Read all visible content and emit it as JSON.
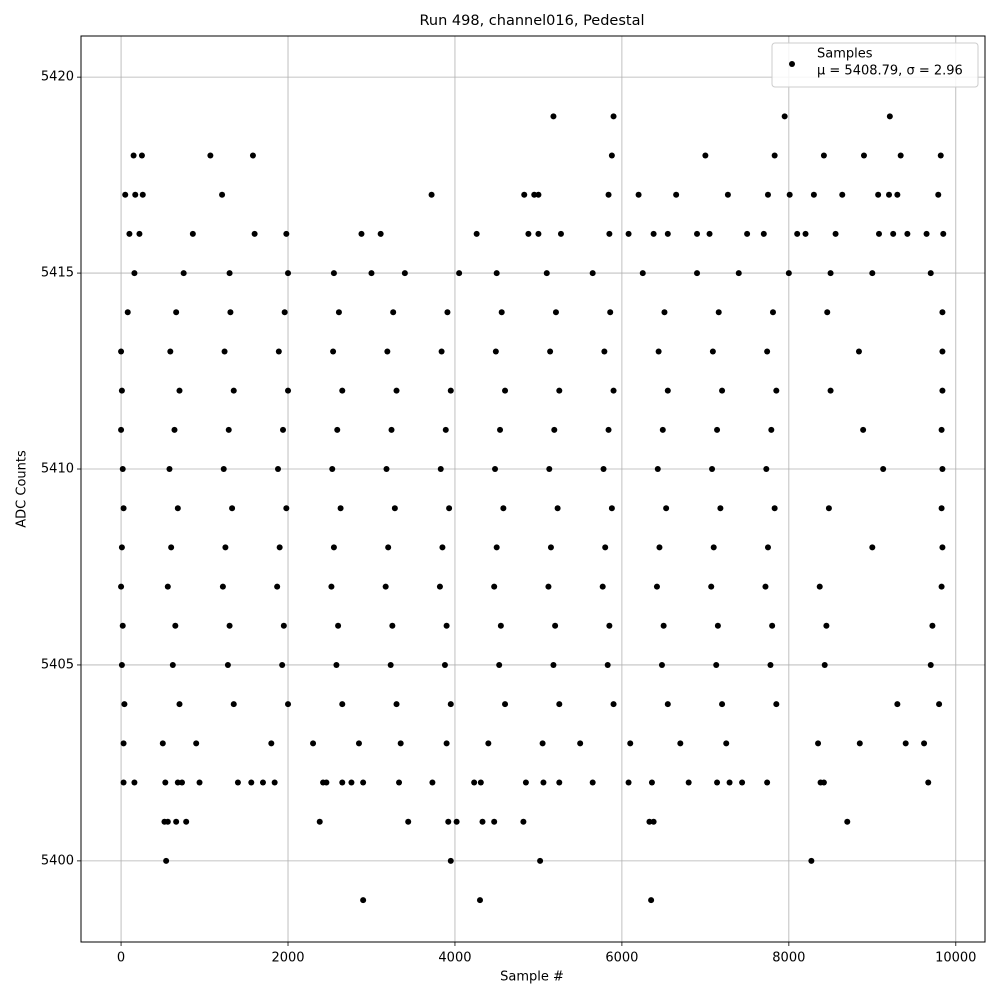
{
  "chart_data": {
    "type": "scatter",
    "title": "Run 498, channel016, Pedestal",
    "x_label": "Sample #",
    "y_label": "ADC Counts",
    "xlim": [
      -480,
      10350
    ],
    "ylim": [
      5397.93,
      5421.05
    ],
    "xticks": [
      0,
      2000,
      4000,
      6000,
      8000,
      10000
    ],
    "yticks": [
      5400,
      5405,
      5410,
      5415,
      5420
    ],
    "grid": true,
    "legend": "upper right",
    "stats_label": "μ = 5408.79, σ = 2.96",
    "x": [
      2900,
      4300,
      6350,
      540,
      3950,
      5020,
      8270,
      520,
      560,
      660,
      780,
      2380,
      3440,
      3920,
      4020,
      4330,
      4470,
      4820,
      6330,
      6380,
      8700,
      30,
      160,
      530,
      680,
      730,
      940,
      1400,
      1560,
      1700,
      1840,
      2420,
      2460,
      2650,
      2760,
      2900,
      3330,
      3730,
      4230,
      4310,
      4850,
      5060,
      5250,
      5650,
      6080,
      6360,
      6800,
      7140,
      7290,
      7440,
      7740,
      8380,
      8420,
      9670,
      30,
      500,
      900,
      1800,
      2300,
      2850,
      3350,
      3900,
      4400,
      5050,
      5500,
      6100,
      6700,
      7250,
      8350,
      8850,
      9400,
      9620,
      40,
      700,
      1350,
      2000,
      2650,
      3300,
      3950,
      4600,
      5250,
      5900,
      6550,
      7200,
      7850,
      9300,
      9800,
      10,
      620,
      1280,
      1930,
      2580,
      3230,
      3880,
      4530,
      5180,
      5830,
      6480,
      7130,
      7780,
      8430,
      9700,
      20,
      650,
      1300,
      1950,
      2600,
      3250,
      3900,
      4550,
      5200,
      5850,
      6500,
      7150,
      7800,
      8450,
      9720,
      0,
      560,
      1220,
      1870,
      2520,
      3170,
      3820,
      4470,
      5120,
      5770,
      6420,
      7070,
      7720,
      8370,
      9830,
      10,
      600,
      1250,
      1900,
      2550,
      3200,
      3850,
      4500,
      5150,
      5800,
      6450,
      7100,
      7750,
      9000,
      9840,
      30,
      680,
      1330,
      1980,
      2630,
      3280,
      3930,
      4580,
      5230,
      5880,
      6530,
      7180,
      7830,
      8480,
      9830,
      20,
      580,
      1230,
      1880,
      2530,
      3180,
      3830,
      4480,
      5130,
      5780,
      6430,
      7080,
      7730,
      9130,
      9840,
      0,
      640,
      1290,
      1940,
      2590,
      3240,
      3890,
      4540,
      5190,
      5840,
      6490,
      7140,
      7790,
      8890,
      9830,
      10,
      700,
      1350,
      2000,
      2650,
      3300,
      3950,
      4600,
      5250,
      5900,
      6550,
      7200,
      7850,
      8500,
      9840,
      0,
      590,
      1240,
      1890,
      2540,
      3190,
      3840,
      4490,
      5140,
      5790,
      6440,
      7090,
      7740,
      8840,
      9840,
      80,
      660,
      1310,
      1960,
      2610,
      3260,
      3910,
      4560,
      5210,
      5860,
      6510,
      7160,
      7810,
      8460,
      9840,
      160,
      750,
      1300,
      2000,
      2550,
      3000,
      3400,
      4050,
      4500,
      5100,
      5650,
      6250,
      6900,
      7400,
      8000,
      8500,
      9000,
      9700,
      100,
      220,
      860,
      1600,
      1980,
      2880,
      3110,
      4260,
      4880,
      5000,
      5270,
      5850,
      6080,
      6380,
      6550,
      6900,
      7050,
      7500,
      7700,
      8100,
      8200,
      8560,
      9080,
      9250,
      9420,
      9650,
      9850,
      50,
      170,
      260,
      1210,
      3720,
      4830,
      4950,
      5000,
      5840,
      6200,
      6650,
      7270,
      7750,
      8010,
      8300,
      8640,
      9070,
      9200,
      9300,
      9790,
      150,
      250,
      1070,
      1580,
      5880,
      7000,
      7830,
      8420,
      8900,
      9340,
      9820,
      5180,
      5900,
      7950,
      9210
    ],
    "series": [
      {
        "name": "Samples",
        "color": "#000000",
        "values": [
          5399,
          5399,
          5399,
          5400,
          5400,
          5400,
          5400,
          5401,
          5401,
          5401,
          5401,
          5401,
          5401,
          5401,
          5401,
          5401,
          5401,
          5401,
          5401,
          5401,
          5401,
          5402,
          5402,
          5402,
          5402,
          5402,
          5402,
          5402,
          5402,
          5402,
          5402,
          5402,
          5402,
          5402,
          5402,
          5402,
          5402,
          5402,
          5402,
          5402,
          5402,
          5402,
          5402,
          5402,
          5402,
          5402,
          5402,
          5402,
          5402,
          5402,
          5402,
          5402,
          5402,
          5402,
          5403,
          5403,
          5403,
          5403,
          5403,
          5403,
          5403,
          5403,
          5403,
          5403,
          5403,
          5403,
          5403,
          5403,
          5403,
          5403,
          5403,
          5403,
          5404,
          5404,
          5404,
          5404,
          5404,
          5404,
          5404,
          5404,
          5404,
          5404,
          5404,
          5404,
          5404,
          5404,
          5404,
          5405,
          5405,
          5405,
          5405,
          5405,
          5405,
          5405,
          5405,
          5405,
          5405,
          5405,
          5405,
          5405,
          5405,
          5405,
          5406,
          5406,
          5406,
          5406,
          5406,
          5406,
          5406,
          5406,
          5406,
          5406,
          5406,
          5406,
          5406,
          5406,
          5406,
          5407,
          5407,
          5407,
          5407,
          5407,
          5407,
          5407,
          5407,
          5407,
          5407,
          5407,
          5407,
          5407,
          5407,
          5407,
          5408,
          5408,
          5408,
          5408,
          5408,
          5408,
          5408,
          5408,
          5408,
          5408,
          5408,
          5408,
          5408,
          5408,
          5408,
          5409,
          5409,
          5409,
          5409,
          5409,
          5409,
          5409,
          5409,
          5409,
          5409,
          5409,
          5409,
          5409,
          5409,
          5409,
          5410,
          5410,
          5410,
          5410,
          5410,
          5410,
          5410,
          5410,
          5410,
          5410,
          5410,
          5410,
          5410,
          5410,
          5410,
          5411,
          5411,
          5411,
          5411,
          5411,
          5411,
          5411,
          5411,
          5411,
          5411,
          5411,
          5411,
          5411,
          5411,
          5411,
          5412,
          5412,
          5412,
          5412,
          5412,
          5412,
          5412,
          5412,
          5412,
          5412,
          5412,
          5412,
          5412,
          5412,
          5412,
          5413,
          5413,
          5413,
          5413,
          5413,
          5413,
          5413,
          5413,
          5413,
          5413,
          5413,
          5413,
          5413,
          5413,
          5413,
          5414,
          5414,
          5414,
          5414,
          5414,
          5414,
          5414,
          5414,
          5414,
          5414,
          5414,
          5414,
          5414,
          5414,
          5414,
          5415,
          5415,
          5415,
          5415,
          5415,
          5415,
          5415,
          5415,
          5415,
          5415,
          5415,
          5415,
          5415,
          5415,
          5415,
          5415,
          5415,
          5415,
          5416,
          5416,
          5416,
          5416,
          5416,
          5416,
          5416,
          5416,
          5416,
          5416,
          5416,
          5416,
          5416,
          5416,
          5416,
          5416,
          5416,
          5416,
          5416,
          5416,
          5416,
          5416,
          5416,
          5416,
          5416,
          5416,
          5416,
          5417,
          5417,
          5417,
          5417,
          5417,
          5417,
          5417,
          5417,
          5417,
          5417,
          5417,
          5417,
          5417,
          5417,
          5417,
          5417,
          5417,
          5417,
          5417,
          5417,
          5418,
          5418,
          5418,
          5418,
          5418,
          5418,
          5418,
          5418,
          5418,
          5418,
          5418,
          5419,
          5419,
          5419,
          5419
        ]
      }
    ]
  }
}
